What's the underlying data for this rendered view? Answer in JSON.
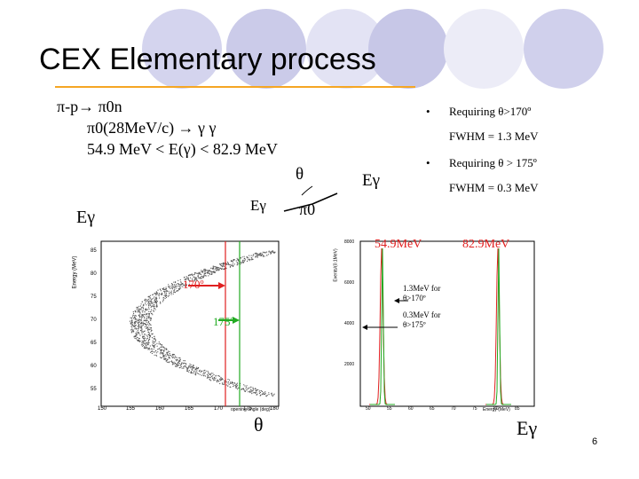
{
  "slide": {
    "title": "CEX Elementary process",
    "page_number": "6"
  },
  "reaction": {
    "line1": "π-p→ π0n",
    "line2": "π0(28MeV/c) → γ γ",
    "line3": "54.9 MeV < E(γ) < 82.9 MeV"
  },
  "diagram": {
    "theta": "θ",
    "egamma_left": "Eγ",
    "egamma_right": "Eγ",
    "pi0": "π0"
  },
  "bullets": [
    {
      "text": "Requiring θ>170º",
      "fwhm": "FWHM = 1.3 MeV"
    },
    {
      "text": "Requiring θ > 175º",
      "fwhm": "FWHM = 0.3 MeV"
    }
  ],
  "left_plot": {
    "side_label": "Eγ",
    "bottom_label": "θ",
    "annot_170": "170º",
    "annot_175": "175º",
    "ylabel": "Energy (MeV)",
    "xlabel": "opening angle (deg)",
    "yticks": [
      "85",
      "80",
      "75",
      "70",
      "65",
      "60",
      "55"
    ],
    "xticks": [
      "150",
      "155",
      "160",
      "165",
      "170",
      "175",
      "180"
    ]
  },
  "right_plot": {
    "label_549": "54.9MeV",
    "label_829": "82.9MeV",
    "note1": "1.3MeV for θ>170º",
    "note2": "0.3MeV for θ>175º",
    "bottom_label": "Eγ",
    "ylabel": "Events/(0.1MeV)",
    "xlabel": "Energy (MeV)",
    "yticks": [
      "8000",
      "6000",
      "4000",
      "2000"
    ],
    "xticks": [
      "50",
      "55",
      "60",
      "65",
      "70",
      "75",
      "80",
      "85"
    ]
  },
  "colors": {
    "accent_orange": "#f5a623",
    "circle_lavender": "#c9c9e8",
    "annot_red": "#e02020",
    "arrow_green": "#22aa22"
  }
}
